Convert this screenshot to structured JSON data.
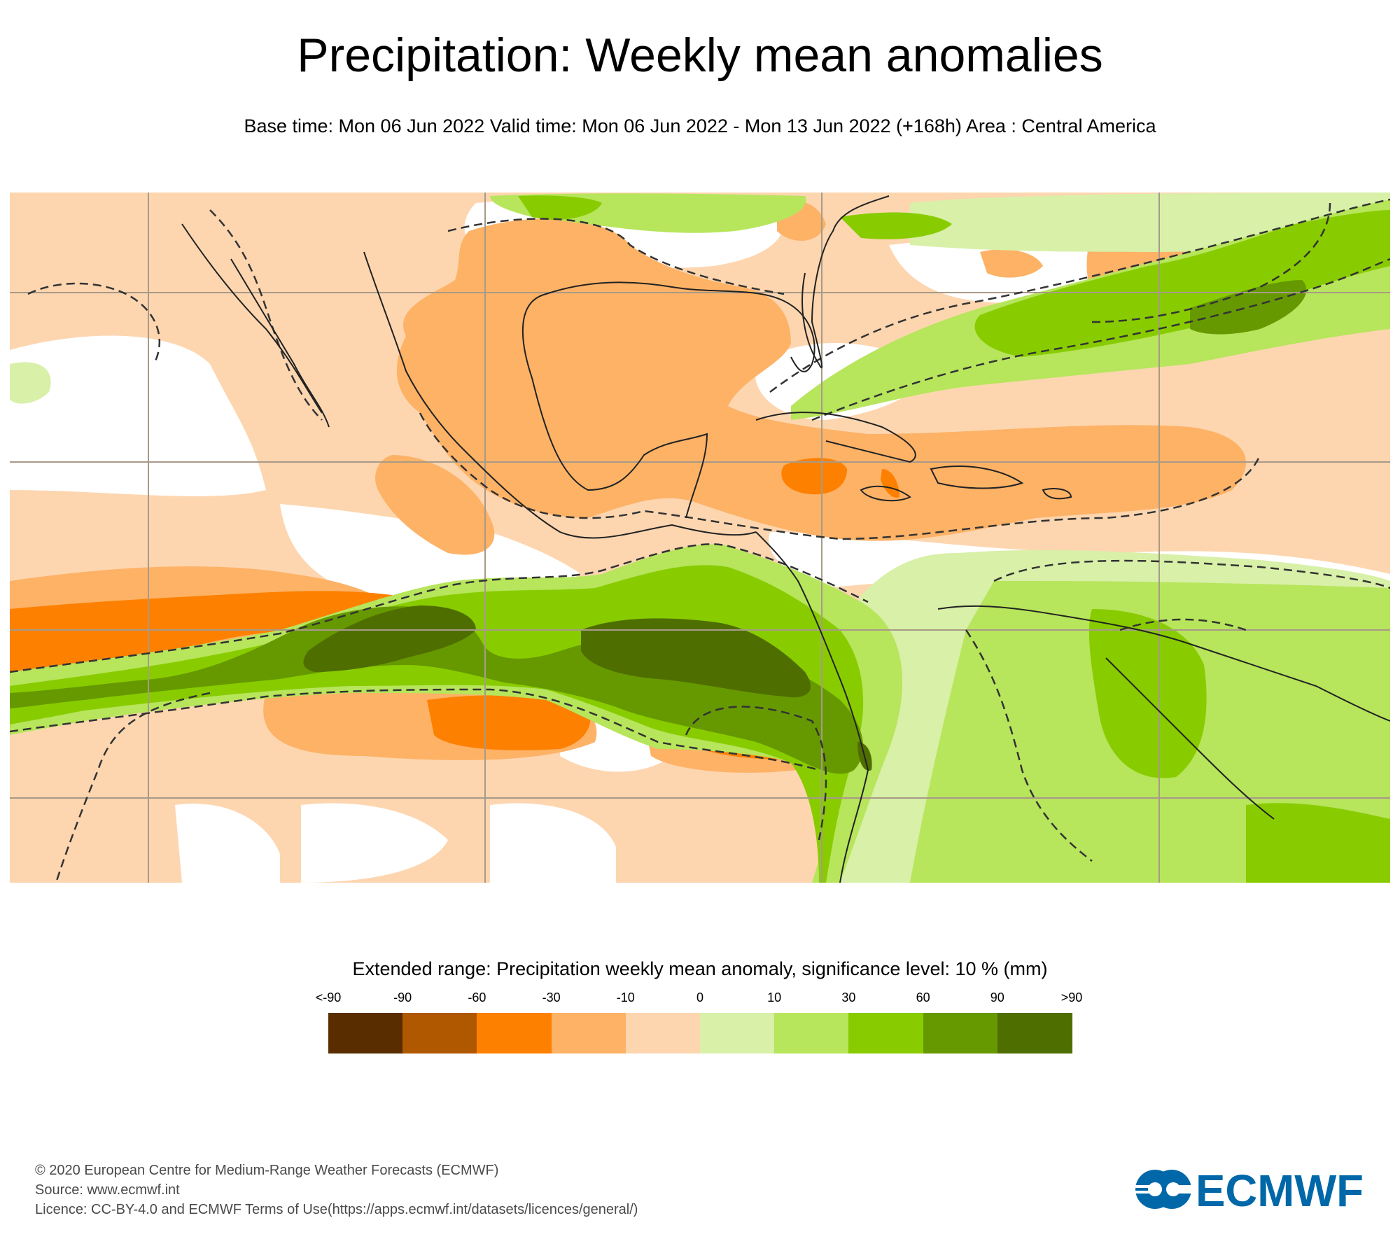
{
  "header": {
    "title": "Precipitation: Weekly mean anomalies",
    "subtitle": "Base time: Mon 06 Jun 2022 Valid time: Mon 06 Jun 2022 - Mon 13 Jun 2022 (+168h) Area : Central America"
  },
  "map": {
    "area": "Central America",
    "fill_colors": {
      "neutral": "#ffffff",
      "dry_light": "#fdd6b0",
      "dry_medium": "#fdb266",
      "dry_strong": "#fe8000",
      "wet_light": "#d8f0a8",
      "wet_medium": "#b7e55c",
      "wet_strong": "#88cc00",
      "wet_heavy": "#669900",
      "wet_extreme": "#4f6e00"
    },
    "gridline_color": "#a89a88",
    "coastline_color": "#222222",
    "significance_contour_style": "dashed"
  },
  "legend": {
    "title": "Extended range: Precipitation weekly mean anomaly, significance level: 10 % (mm)",
    "labels": [
      "<-90",
      "-90",
      "-60",
      "-30",
      "-10",
      "0",
      "10",
      "30",
      "60",
      "90",
      ">90"
    ],
    "colors": [
      "#5a2d00",
      "#b05800",
      "#fe8000",
      "#fdb266",
      "#fdd6b0",
      "#d8f0a8",
      "#b7e55c",
      "#88cc00",
      "#669900",
      "#4f6e00"
    ]
  },
  "footer": {
    "copyright": "© 2020 European Centre for Medium-Range Weather Forecasts (ECMWF)",
    "source": "Source: www.ecmwf.int",
    "licence": "Licence: CC-BY-4.0 and ECMWF Terms of Use(https://apps.ecmwf.int/datasets/licences/general/)"
  },
  "logo": {
    "text": "ECMWF",
    "color": "#0068a8"
  }
}
